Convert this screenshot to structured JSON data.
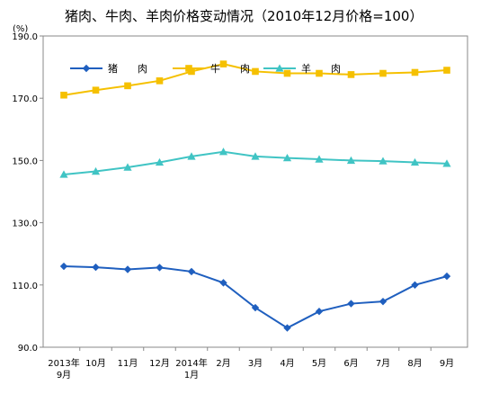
{
  "chart_data": {
    "type": "line",
    "title": "猪肉、牛肉、羊肉价格变动情况（2010年12月价格=100）",
    "unit": "(%)",
    "categories": [
      [
        "2013年",
        "9月"
      ],
      [
        "10月"
      ],
      [
        "11月"
      ],
      [
        "12月"
      ],
      [
        "2014年",
        "1月"
      ],
      [
        "2月"
      ],
      [
        "3月"
      ],
      [
        "4月"
      ],
      [
        "5月"
      ],
      [
        "6月"
      ],
      [
        "7月"
      ],
      [
        "8月"
      ],
      [
        "9月"
      ]
    ],
    "ylim": [
      90,
      190
    ],
    "yticks": [
      "90.0",
      "110.0",
      "130.0",
      "150.0",
      "170.0",
      "190.0"
    ],
    "series": [
      {
        "name": "猪　　肉",
        "color": "#1f5fbf",
        "marker": "diamond",
        "values": [
          116.0,
          115.7,
          115.0,
          115.6,
          114.3,
          110.7,
          102.7,
          96.2,
          101.5,
          104.0,
          104.7,
          110.0,
          112.8
        ]
      },
      {
        "name": "牛　　肉",
        "color": "#f5c000",
        "marker": "square",
        "values": [
          171.0,
          172.6,
          174.0,
          175.6,
          178.6,
          181.0,
          178.6,
          178.0,
          178.0,
          177.6,
          178.0,
          178.3,
          179.0
        ]
      },
      {
        "name": "羊　　肉",
        "color": "#40c4c4",
        "marker": "triangle",
        "values": [
          145.5,
          146.5,
          147.8,
          149.4,
          151.3,
          152.8,
          151.3,
          150.8,
          150.4,
          150.0,
          149.8,
          149.4,
          149.0
        ]
      }
    ],
    "grid": false,
    "legend": "top-left"
  }
}
